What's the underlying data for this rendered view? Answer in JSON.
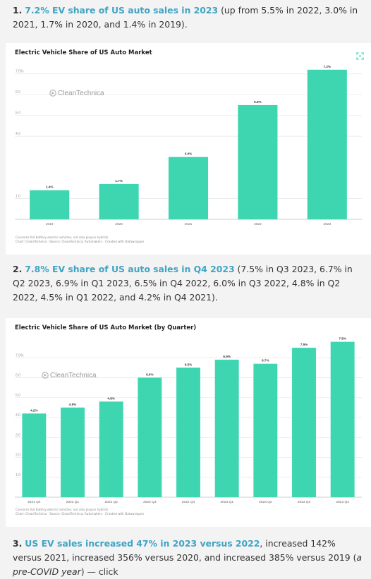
{
  "items": [
    {
      "number": "1.",
      "link": "7.2% EV share of US auto sales in 2023",
      "body": " (up from 5.5% in 2022, 3.0% in 2021, 1.7% in 2020, and 1.4% in 2019)."
    },
    {
      "number": "2.",
      "link": "7.8% EV share of US auto sales in Q4 2023",
      "body": " (7.5% in Q3 2023, 6.7% in Q2 2023, 6.9% in Q1 2023, 6.5% in Q4 2022, 6.0% in Q3 2022, 4.8% in Q2 2022, 4.5% in Q1 2022, and 4.2% in Q4 2021)."
    },
    {
      "number": "3.",
      "link": "US EV sales increased 47% in 2023 versus 2022",
      "body_a": ", increased 142% versus 2021, increased 356% versus 2020, and increased 385% versus 2019 (",
      "italic": "a pre-COVID year",
      "body_b": ") — click"
    }
  ],
  "watermark": "CleanTechnica",
  "colors": {
    "bar": "#3dd6b0",
    "link": "#3fa4c4",
    "grid": "#e6e6e6"
  },
  "chart_data": [
    {
      "type": "bar",
      "title": "Electric Vehicle Share of US Auto Market",
      "categories": [
        "2019",
        "2020",
        "2021",
        "2022",
        "2023"
      ],
      "values": [
        1.4,
        1.7,
        3.0,
        5.5,
        7.2
      ],
      "value_labels": [
        "1.4%",
        "1.7%",
        "3.0%",
        "5.5%",
        "7.2%"
      ],
      "yticks": [
        1.0,
        4.0,
        5.0,
        6.0,
        7.0
      ],
      "ytick_labels": [
        "1.0",
        "4.0",
        "5.0",
        "6.0",
        "7.0%"
      ],
      "ylim": [
        0,
        7.5
      ],
      "grid": true,
      "notes": [
        "Concerns full battery electric vehicles, not also plug-in hybrids.",
        "Chart: CleanTechnica · Source: CleanTechnica, Automakers · Created with Datawrapper"
      ]
    },
    {
      "type": "bar",
      "title": "Electric Vehicle Share of US Auto Market (by Quarter)",
      "categories": [
        "2021 Q4",
        "2022 Q1",
        "2022 Q2",
        "2022 Q3",
        "2022 Q4",
        "2023 Q1",
        "2023 Q2",
        "2023 Q3",
        "2023 Q4"
      ],
      "values": [
        4.2,
        4.5,
        4.8,
        6.0,
        6.5,
        6.9,
        6.7,
        7.5,
        7.8
      ],
      "value_labels": [
        "4.2%",
        "4.5%",
        "4.8%",
        "6.0%",
        "6.5%",
        "6.9%",
        "6.7%",
        "7.5%",
        "7.8%"
      ],
      "yticks": [
        1.0,
        2.0,
        3.0,
        4.0,
        5.0,
        6.0,
        7.0
      ],
      "ytick_labels": [
        "1.0",
        "2.0",
        "3.0",
        "4.0",
        "5.0",
        "6.0",
        "7.0%"
      ],
      "ylim": [
        0,
        8.0
      ],
      "grid": true,
      "notes": [
        "Concerns full battery electric vehicles, not also plug-in hybrids.",
        "Chart: CleanTechnica · Source: CleanTechnica, Automakers · Created with Datawrapper"
      ]
    }
  ]
}
